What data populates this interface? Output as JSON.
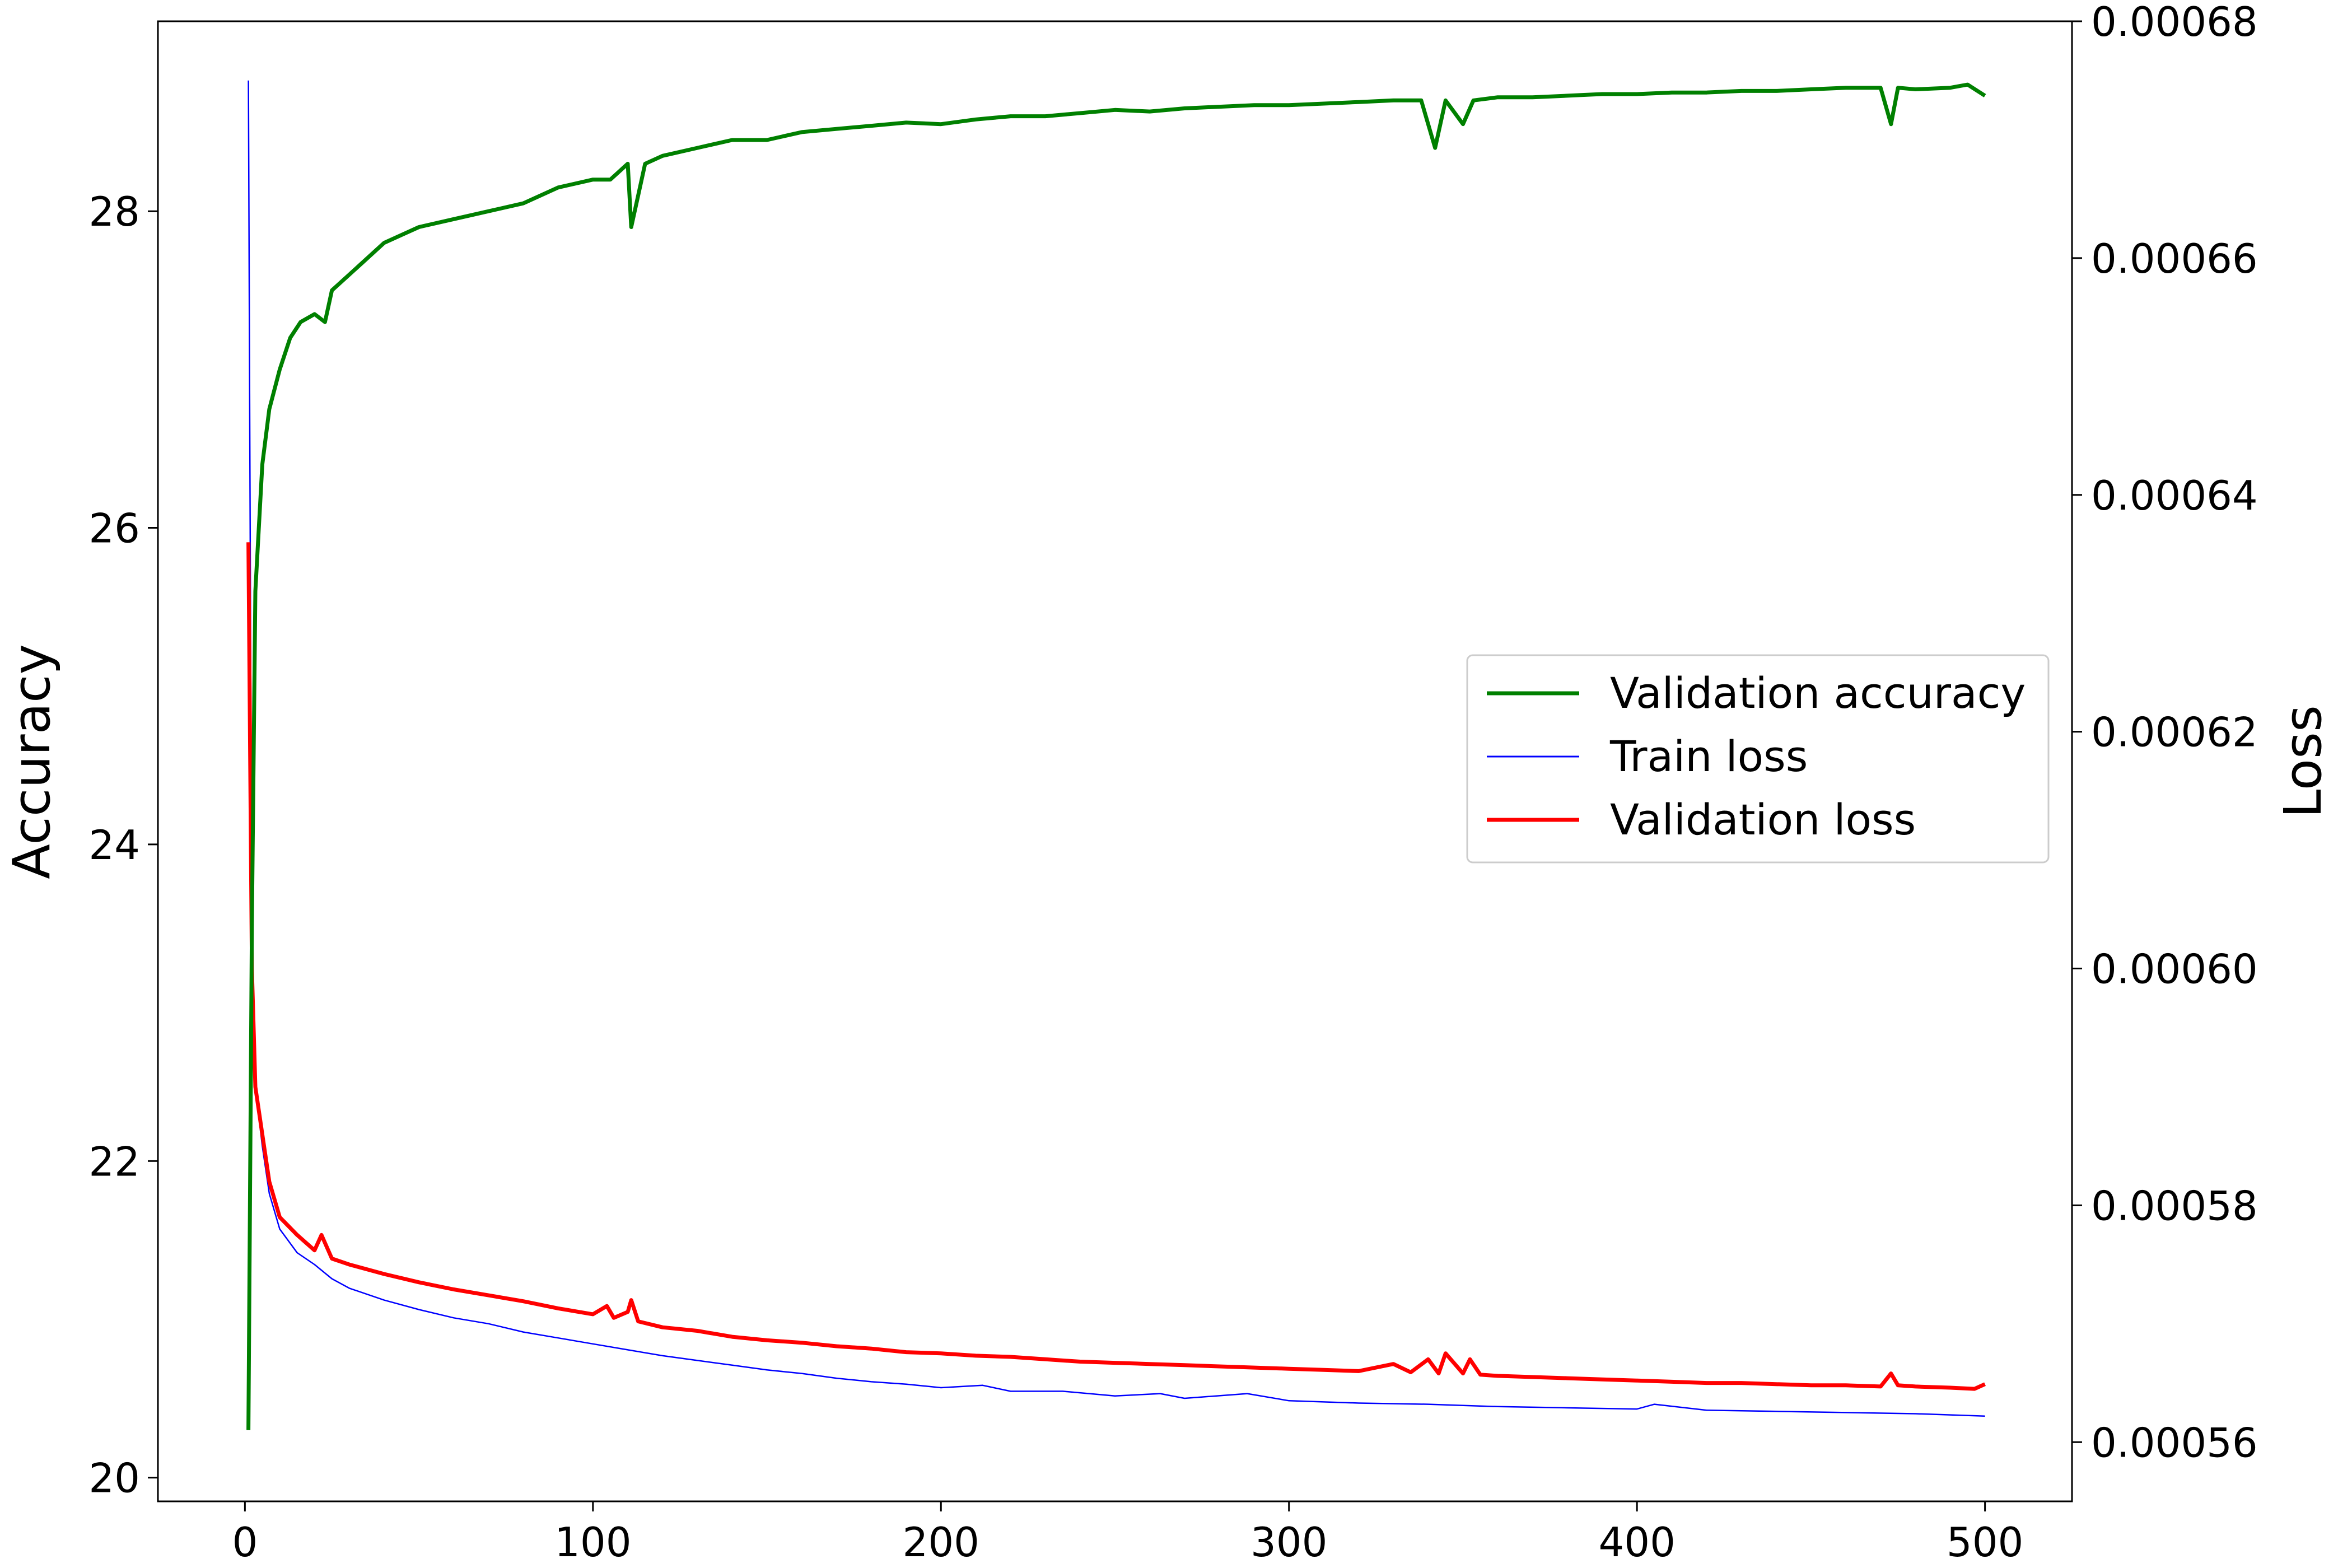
{
  "chart_data": {
    "type": "line",
    "title": "",
    "xlabel": "",
    "ylabel_left": "Accuracy",
    "ylabel_right": "Loss",
    "xlim": [
      -25,
      525
    ],
    "ylim_left": [
      19.85,
      29.2
    ],
    "ylim_right": [
      0.000555,
      0.00068
    ],
    "x_ticks": [
      0,
      100,
      200,
      300,
      400,
      500
    ],
    "y_left_ticks": [
      20,
      22,
      24,
      26,
      28
    ],
    "y_right_ticks": [
      0.00056,
      0.00058,
      0.0006,
      0.00062,
      0.00064,
      0.00066,
      0.00068
    ],
    "y_right_tick_labels": [
      "0.00056",
      "0.00058",
      "0.00060",
      "0.00062",
      "0.00064",
      "0.00066",
      "0.00068"
    ],
    "grid": false,
    "legend_position": "center-right",
    "series": [
      {
        "name": "Validation accuracy",
        "axis": "left",
        "color": "#008000",
        "x": [
          1,
          2,
          3,
          5,
          7,
          10,
          13,
          16,
          20,
          23,
          25,
          30,
          35,
          40,
          45,
          50,
          60,
          70,
          80,
          90,
          100,
          105,
          110,
          111,
          115,
          120,
          130,
          140,
          150,
          160,
          170,
          180,
          190,
          200,
          210,
          220,
          230,
          240,
          250,
          260,
          270,
          280,
          290,
          300,
          310,
          320,
          330,
          338,
          342,
          345,
          350,
          353,
          360,
          370,
          380,
          390,
          400,
          410,
          420,
          430,
          440,
          450,
          460,
          470,
          473,
          475,
          480,
          490,
          495,
          500
        ],
        "y": [
          20.3,
          23.5,
          25.6,
          26.4,
          26.75,
          27.0,
          27.2,
          27.3,
          27.35,
          27.3,
          27.5,
          27.6,
          27.7,
          27.8,
          27.85,
          27.9,
          27.95,
          28.0,
          28.05,
          28.15,
          28.2,
          28.2,
          28.3,
          27.9,
          28.3,
          28.35,
          28.4,
          28.45,
          28.45,
          28.5,
          28.52,
          28.54,
          28.56,
          28.55,
          28.58,
          28.6,
          28.6,
          28.62,
          28.64,
          28.63,
          28.65,
          28.66,
          28.67,
          28.67,
          28.68,
          28.69,
          28.7,
          28.7,
          28.4,
          28.7,
          28.55,
          28.7,
          28.72,
          28.72,
          28.73,
          28.74,
          28.74,
          28.75,
          28.75,
          28.76,
          28.76,
          28.77,
          28.78,
          28.78,
          28.55,
          28.78,
          28.77,
          28.78,
          28.8,
          28.73
        ]
      },
      {
        "name": "Train loss",
        "axis": "right",
        "color": "#0000ff",
        "x": [
          1,
          2,
          3,
          5,
          7,
          10,
          15,
          20,
          25,
          30,
          40,
          50,
          60,
          70,
          80,
          90,
          100,
          110,
          120,
          130,
          140,
          150,
          160,
          170,
          180,
          190,
          200,
          212,
          220,
          235,
          250,
          263,
          270,
          288,
          300,
          320,
          340,
          360,
          380,
          400,
          405,
          420,
          440,
          460,
          480,
          500
        ],
        "y": [
          0.000675,
          0.0006,
          0.00059,
          0.000585,
          0.000581,
          0.000578,
          0.000576,
          0.000575,
          0.0005738,
          0.000573,
          0.000572,
          0.0005712,
          0.0005705,
          0.00057,
          0.0005693,
          0.0005688,
          0.0005683,
          0.0005678,
          0.0005673,
          0.0005669,
          0.0005665,
          0.0005661,
          0.0005658,
          0.0005654,
          0.0005651,
          0.0005649,
          0.0005646,
          0.0005648,
          0.0005643,
          0.0005643,
          0.0005639,
          0.0005641,
          0.0005637,
          0.0005641,
          0.0005635,
          0.0005633,
          0.0005632,
          0.000563,
          0.0005629,
          0.0005628,
          0.0005632,
          0.0005627,
          0.0005626,
          0.0005625,
          0.0005624,
          0.0005622
        ]
      },
      {
        "name": "Validation loss",
        "axis": "right",
        "color": "#ff0000",
        "x": [
          1,
          2,
          3,
          5,
          7,
          10,
          15,
          20,
          22,
          25,
          30,
          40,
          50,
          60,
          70,
          80,
          90,
          100,
          104,
          106,
          110,
          111,
          113,
          120,
          130,
          140,
          150,
          160,
          170,
          180,
          190,
          200,
          210,
          220,
          230,
          240,
          250,
          260,
          270,
          280,
          290,
          300,
          310,
          320,
          330,
          335,
          340,
          343,
          345,
          350,
          352,
          355,
          360,
          370,
          380,
          390,
          400,
          410,
          420,
          430,
          440,
          450,
          460,
          470,
          473,
          475,
          480,
          490,
          497,
          500
        ],
        "y": [
          0.000636,
          0.0006,
          0.00059,
          0.000586,
          0.000582,
          0.000579,
          0.0005775,
          0.0005762,
          0.0005775,
          0.0005755,
          0.000575,
          0.0005742,
          0.0005735,
          0.0005729,
          0.0005724,
          0.0005719,
          0.0005713,
          0.0005708,
          0.0005715,
          0.0005705,
          0.000571,
          0.000572,
          0.0005702,
          0.0005697,
          0.0005694,
          0.0005689,
          0.0005686,
          0.0005684,
          0.0005681,
          0.0005679,
          0.0005676,
          0.0005675,
          0.0005673,
          0.0005672,
          0.000567,
          0.0005668,
          0.0005667,
          0.0005666,
          0.0005665,
          0.0005664,
          0.0005663,
          0.0005662,
          0.0005661,
          0.000566,
          0.0005666,
          0.0005659,
          0.000567,
          0.0005658,
          0.0005675,
          0.0005658,
          0.000567,
          0.0005657,
          0.0005656,
          0.0005655,
          0.0005654,
          0.0005653,
          0.0005652,
          0.0005651,
          0.000565,
          0.000565,
          0.0005649,
          0.0005648,
          0.0005648,
          0.0005647,
          0.0005658,
          0.0005648,
          0.0005647,
          0.0005646,
          0.0005645,
          0.0005649
        ]
      }
    ]
  }
}
